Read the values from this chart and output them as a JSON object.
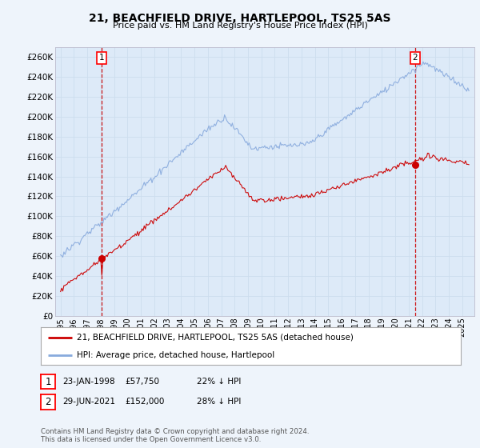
{
  "title": "21, BEACHFIELD DRIVE, HARTLEPOOL, TS25 5AS",
  "subtitle": "Price paid vs. HM Land Registry's House Price Index (HPI)",
  "ylim": [
    0,
    270000
  ],
  "yticks": [
    0,
    20000,
    40000,
    60000,
    80000,
    100000,
    120000,
    140000,
    160000,
    180000,
    200000,
    220000,
    240000,
    260000
  ],
  "sale1_date": "23-JAN-1998",
  "sale1_price": 57750,
  "sale1_label": "22% ↓ HPI",
  "sale1_year": 1998.07,
  "sale2_date": "29-JUN-2021",
  "sale2_price": 152000,
  "sale2_label": "28% ↓ HPI",
  "sale2_year": 2021.49,
  "legend_house": "21, BEACHFIELD DRIVE, HARTLEPOOL, TS25 5AS (detached house)",
  "legend_hpi": "HPI: Average price, detached house, Hartlepool",
  "footnote": "Contains HM Land Registry data © Crown copyright and database right 2024.\nThis data is licensed under the Open Government Licence v3.0.",
  "color_house": "#cc0000",
  "color_hpi": "#88aadd",
  "grid_color": "#ccddee",
  "bg_color": "#eef4fb",
  "plot_bg": "#ddeaf8"
}
